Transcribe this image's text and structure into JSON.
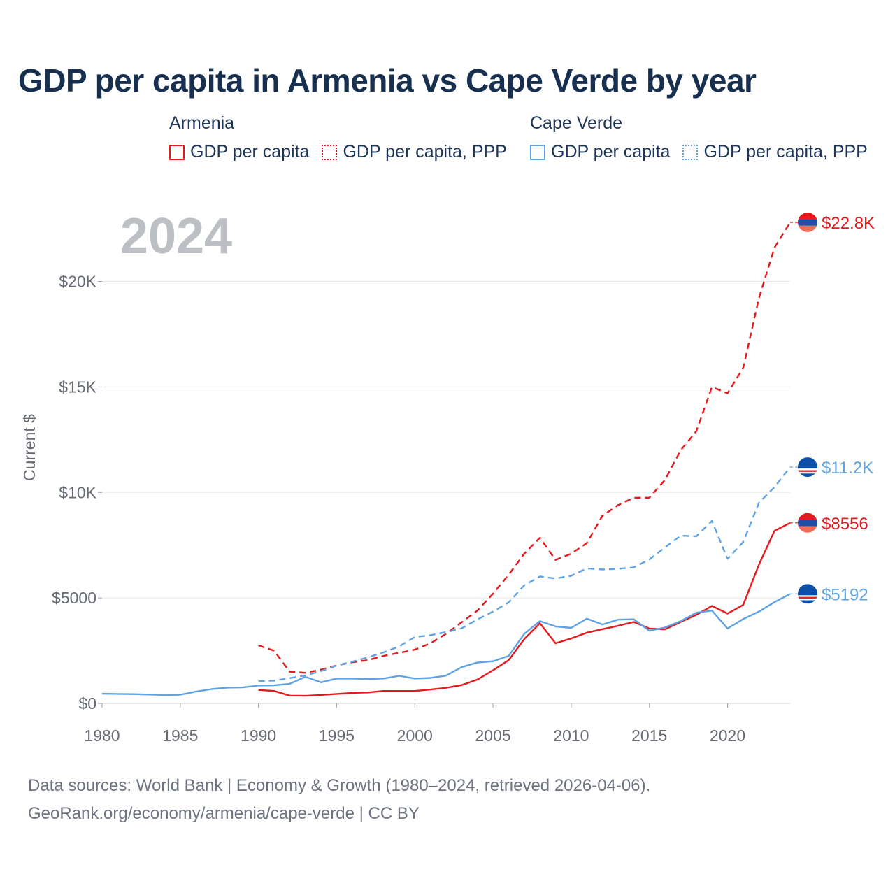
{
  "title": "GDP per capita in Armenia vs Cape Verde by year",
  "legend": [
    {
      "country": "Armenia",
      "color": "#e8191c",
      "items": [
        {
          "label": "GDP per capita",
          "style": "solid"
        },
        {
          "label": "GDP per capita, PPP",
          "style": "dotted"
        }
      ]
    },
    {
      "country": "Cape Verde",
      "color": "#5fa3e3",
      "items": [
        {
          "label": "GDP per capita",
          "style": "solid"
        },
        {
          "label": "GDP per capita, PPP",
          "style": "dotted"
        }
      ]
    }
  ],
  "footer": {
    "line1": "Data sources: World Bank | Economy & Growth (1980–2024, retrieved 2026-04-06).",
    "line2": "GeoRank.org/economy/armenia/cape-verde | CC BY"
  },
  "chart_data": {
    "type": "line",
    "year_label": "2024",
    "ylabel": "Current $",
    "xlim": [
      1980,
      2024
    ],
    "ylim": [
      0,
      23000
    ],
    "x_ticks": [
      1980,
      1985,
      1990,
      1995,
      2000,
      2005,
      2010,
      2015,
      2020
    ],
    "y_ticks": [
      {
        "value": 0,
        "label": "$0"
      },
      {
        "value": 5000,
        "label": "$5000"
      },
      {
        "value": 10000,
        "label": "$10K"
      },
      {
        "value": 15000,
        "label": "$15K"
      },
      {
        "value": 20000,
        "label": "$20K"
      }
    ],
    "series": [
      {
        "name": "Armenia GDP per capita, PPP",
        "country": "Armenia",
        "color": "#e8191c",
        "dash": "dashed",
        "end_label": "$22.8K",
        "flag": "armenia",
        "x": [
          1990,
          1991,
          1992,
          1993,
          1994,
          1995,
          1996,
          1997,
          1998,
          1999,
          2000,
          2001,
          2002,
          2003,
          2004,
          2005,
          2006,
          2007,
          2008,
          2009,
          2010,
          2011,
          2012,
          2013,
          2014,
          2015,
          2016,
          2017,
          2018,
          2019,
          2020,
          2021,
          2022,
          2023,
          2024
        ],
        "values": [
          2750,
          2500,
          1500,
          1450,
          1600,
          1800,
          1950,
          2050,
          2250,
          2400,
          2550,
          2850,
          3300,
          3850,
          4400,
          5200,
          6100,
          7100,
          7850,
          6800,
          7100,
          7600,
          8900,
          9400,
          9750,
          9750,
          10600,
          12000,
          12900,
          15000,
          14700,
          15900,
          19200,
          21600,
          22800
        ]
      },
      {
        "name": "Cape Verde GDP per capita, PPP",
        "country": "Cape Verde",
        "color": "#5fa3e3",
        "dash": "dashed",
        "end_label": "$11.2K",
        "flag": "cape-verde",
        "x": [
          1990,
          1991,
          1992,
          1993,
          1994,
          1995,
          1996,
          1997,
          1998,
          1999,
          2000,
          2001,
          2002,
          2003,
          2004,
          2005,
          2006,
          2007,
          2008,
          2009,
          2010,
          2011,
          2012,
          2013,
          2014,
          2015,
          2016,
          2017,
          2018,
          2019,
          2020,
          2021,
          2022,
          2023,
          2024
        ],
        "values": [
          1050,
          1080,
          1200,
          1330,
          1530,
          1800,
          1980,
          2180,
          2420,
          2700,
          3150,
          3230,
          3380,
          3560,
          3980,
          4350,
          4790,
          5600,
          6020,
          5920,
          6050,
          6400,
          6350,
          6380,
          6450,
          6820,
          7400,
          7950,
          7920,
          8650,
          6850,
          7650,
          9500,
          10250,
          11200
        ]
      },
      {
        "name": "Armenia GDP per capita",
        "country": "Armenia",
        "color": "#e8191c",
        "dash": "solid",
        "end_label": "$8556",
        "flag": "armenia",
        "x": [
          1990,
          1991,
          1992,
          1993,
          1994,
          1995,
          1996,
          1997,
          1998,
          1999,
          2000,
          2001,
          2002,
          2003,
          2004,
          2005,
          2006,
          2007,
          2008,
          2009,
          2010,
          2011,
          2012,
          2013,
          2014,
          2015,
          2016,
          2017,
          2018,
          2019,
          2020,
          2021,
          2022,
          2023,
          2024
        ],
        "values": [
          640,
          590,
          370,
          360,
          400,
          450,
          500,
          520,
          590,
          590,
          590,
          660,
          740,
          870,
          1130,
          1570,
          2050,
          3050,
          3800,
          2850,
          3080,
          3350,
          3520,
          3680,
          3860,
          3550,
          3510,
          3860,
          4200,
          4620,
          4260,
          4670,
          6570,
          8180,
          8556
        ]
      },
      {
        "name": "Cape Verde GDP per capita",
        "country": "Cape Verde",
        "color": "#5fa3e3",
        "dash": "solid",
        "end_label": "$5192",
        "flag": "cape-verde",
        "x": [
          1980,
          1981,
          1982,
          1983,
          1984,
          1985,
          1986,
          1987,
          1988,
          1989,
          1990,
          1991,
          1992,
          1993,
          1994,
          1995,
          1996,
          1997,
          1998,
          1999,
          2000,
          2001,
          2002,
          2003,
          2004,
          2005,
          2006,
          2007,
          2008,
          2009,
          2010,
          2011,
          2012,
          2013,
          2014,
          2015,
          2016,
          2017,
          2018,
          2019,
          2020,
          2021,
          2022,
          2023,
          2024
        ],
        "values": [
          460,
          450,
          440,
          420,
          400,
          410,
          560,
          680,
          750,
          760,
          850,
          860,
          930,
          1260,
          1000,
          1180,
          1180,
          1160,
          1180,
          1310,
          1180,
          1210,
          1320,
          1720,
          1940,
          2000,
          2250,
          3300,
          3900,
          3650,
          3580,
          4020,
          3740,
          3970,
          3990,
          3440,
          3600,
          3900,
          4300,
          4400,
          3550,
          4000,
          4350,
          4800,
          5192
        ]
      }
    ]
  }
}
